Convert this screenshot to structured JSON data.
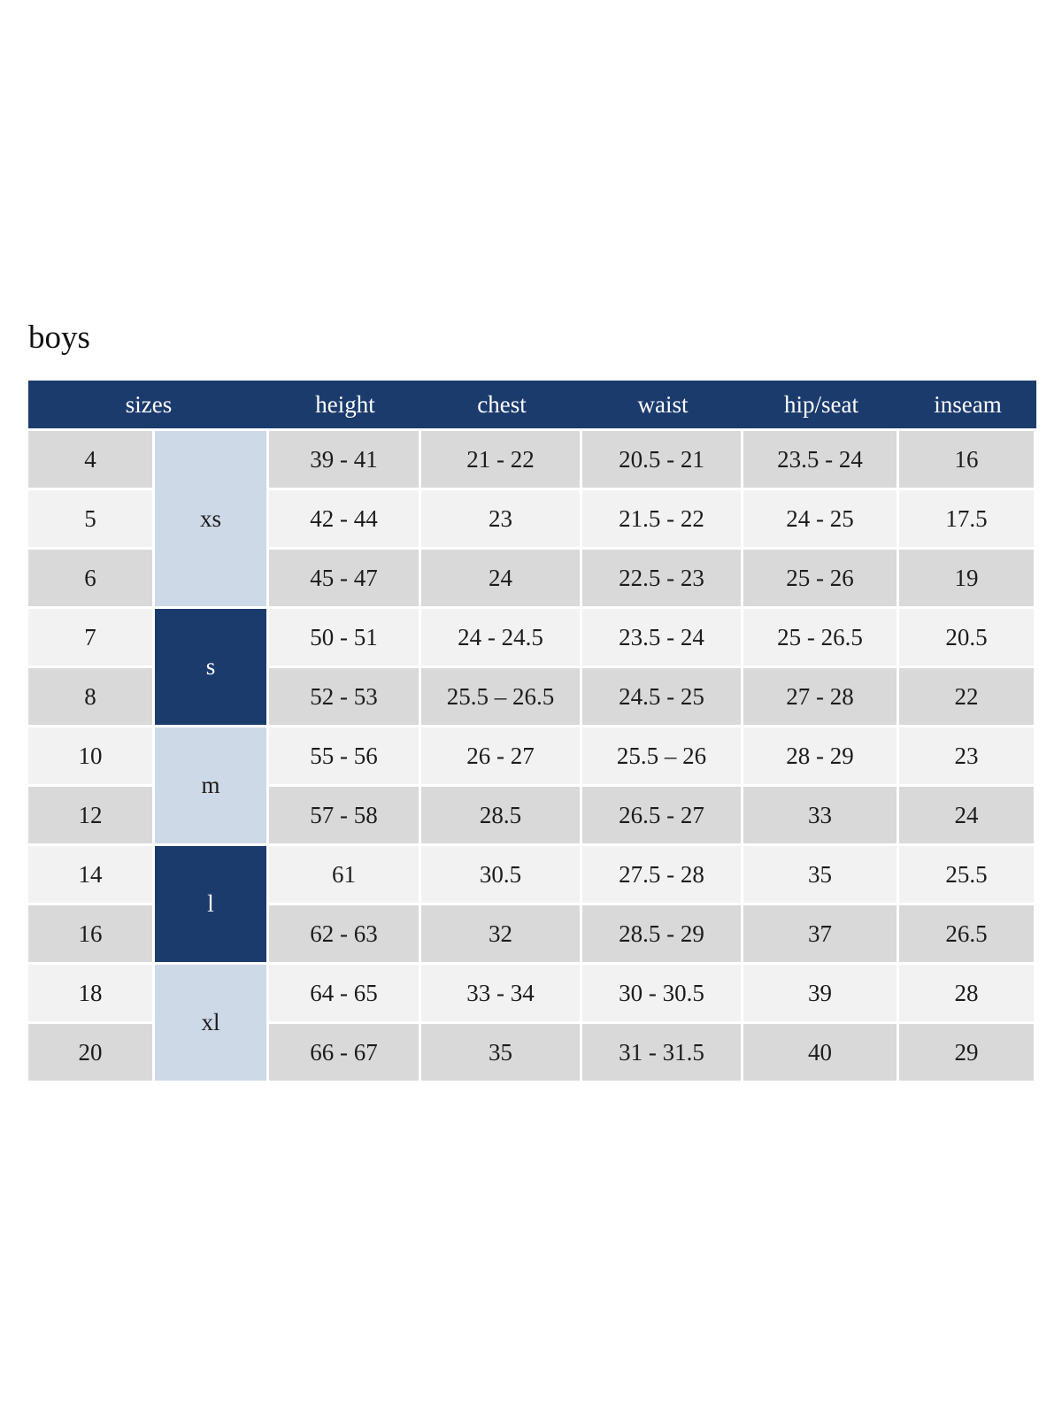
{
  "page": {
    "title": "boys"
  },
  "colors": {
    "header_blue": "#1b3b6d",
    "group_light_blue": "#cdd9e7",
    "row_gray": "#d9d9d9",
    "row_light": "#f2f2f2",
    "text_dark": "#1c1c1c",
    "header_text": "#ffffff"
  },
  "chart_data": {
    "type": "table",
    "title": "boys",
    "columns": [
      "sizes",
      "height",
      "chest",
      "waist",
      "hip/seat",
      "inseam"
    ],
    "size_groups": [
      {
        "label": "xs",
        "row_span": 3,
        "shade": "light"
      },
      {
        "label": "s",
        "row_span": 2,
        "shade": "dark"
      },
      {
        "label": "m",
        "row_span": 2,
        "shade": "light"
      },
      {
        "label": "l",
        "row_span": 2,
        "shade": "dark"
      },
      {
        "label": "xl",
        "row_span": 2,
        "shade": "light"
      }
    ],
    "rows": [
      {
        "size": "4",
        "height": "39 - 41",
        "chest": "21 - 22",
        "waist": "20.5 - 21",
        "hip_seat": "23.5 - 24",
        "inseam": "16"
      },
      {
        "size": "5",
        "height": "42 - 44",
        "chest": "23",
        "waist": "21.5 - 22",
        "hip_seat": "24 - 25",
        "inseam": "17.5"
      },
      {
        "size": "6",
        "height": "45 - 47",
        "chest": "24",
        "waist": "22.5 - 23",
        "hip_seat": "25 - 26",
        "inseam": "19"
      },
      {
        "size": "7",
        "height": "50 - 51",
        "chest": "24 - 24.5",
        "waist": "23.5 - 24",
        "hip_seat": "25 - 26.5",
        "inseam": "20.5"
      },
      {
        "size": "8",
        "height": "52 - 53",
        "chest": "25.5 – 26.5",
        "waist": "24.5 - 25",
        "hip_seat": "27 - 28",
        "inseam": "22"
      },
      {
        "size": "10",
        "height": "55 - 56",
        "chest": "26 - 27",
        "waist": "25.5 – 26",
        "hip_seat": "28 - 29",
        "inseam": "23"
      },
      {
        "size": "12",
        "height": "57 - 58",
        "chest": "28.5",
        "waist": "26.5 - 27",
        "hip_seat": "33",
        "inseam": "24"
      },
      {
        "size": "14",
        "height": "61",
        "chest": "30.5",
        "waist": "27.5 - 28",
        "hip_seat": "35",
        "inseam": "25.5"
      },
      {
        "size": "16",
        "height": "62 - 63",
        "chest": "32",
        "waist": "28.5 - 29",
        "hip_seat": "37",
        "inseam": "26.5"
      },
      {
        "size": "18",
        "height": "64 - 65",
        "chest": "33 - 34",
        "waist": "30 - 30.5",
        "hip_seat": "39",
        "inseam": "28"
      },
      {
        "size": "20",
        "height": "66 - 67",
        "chest": "35",
        "waist": "31 - 31.5",
        "hip_seat": "40",
        "inseam": "29"
      }
    ]
  }
}
